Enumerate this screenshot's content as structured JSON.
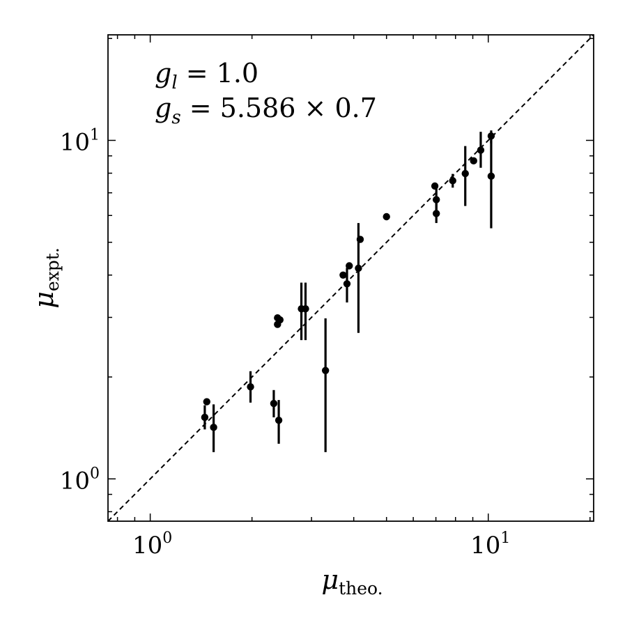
{
  "chart_data": {
    "type": "scatter",
    "xscale": "log",
    "yscale": "log",
    "xlim": [
      0.75,
      20.5
    ],
    "ylim": [
      0.75,
      20.5
    ],
    "grid": false,
    "reference_line": "y = x (dashed)",
    "xlabel": {
      "symbol": "μ",
      "subscript": "theo."
    },
    "ylabel": {
      "symbol": "μ",
      "subscript": "expt."
    },
    "x_ticks": [
      {
        "value": 1,
        "base": "10",
        "exp": "0"
      },
      {
        "value": 10,
        "base": "10",
        "exp": "1"
      }
    ],
    "y_ticks": [
      {
        "value": 1,
        "base": "10",
        "exp": "0"
      },
      {
        "value": 10,
        "base": "10",
        "exp": "1"
      }
    ],
    "annotations": [
      {
        "var": "g",
        "sub": "l",
        "rest": " = 1.0"
      },
      {
        "var": "g",
        "sub": "s",
        "rest": " = 5.586 × 0.7"
      }
    ],
    "points": [
      {
        "x": 1.45,
        "y": 1.52,
        "err_lo": 1.4,
        "err_hi": 1.65
      },
      {
        "x": 1.47,
        "y": 1.69
      },
      {
        "x": 1.54,
        "y": 1.42,
        "err_lo": 1.2,
        "err_hi": 1.66
      },
      {
        "x": 1.98,
        "y": 1.87,
        "err_lo": 1.68,
        "err_hi": 2.08
      },
      {
        "x": 2.32,
        "y": 1.67,
        "err_lo": 1.52,
        "err_hi": 1.83
      },
      {
        "x": 2.38,
        "y": 2.99
      },
      {
        "x": 2.38,
        "y": 2.86
      },
      {
        "x": 2.42,
        "y": 2.95
      },
      {
        "x": 2.4,
        "y": 1.49,
        "err_lo": 1.27,
        "err_hi": 1.71
      },
      {
        "x": 2.8,
        "y": 3.18,
        "err_lo": 2.57,
        "err_hi": 3.8
      },
      {
        "x": 2.88,
        "y": 3.18,
        "err_lo": 2.57,
        "err_hi": 3.8
      },
      {
        "x": 3.3,
        "y": 2.09,
        "err_lo": 1.2,
        "err_hi": 2.98
      },
      {
        "x": 3.72,
        "y": 4.0
      },
      {
        "x": 3.82,
        "y": 3.77,
        "err_lo": 3.32,
        "err_hi": 4.2
      },
      {
        "x": 3.88,
        "y": 4.26
      },
      {
        "x": 4.13,
        "y": 4.19,
        "err_lo": 2.7,
        "err_hi": 5.7
      },
      {
        "x": 4.18,
        "y": 5.1
      },
      {
        "x": 5.0,
        "y": 5.95
      },
      {
        "x": 6.95,
        "y": 7.33
      },
      {
        "x": 7.02,
        "y": 6.68,
        "err_lo": 6.1,
        "err_hi": 7.2
      },
      {
        "x": 7.02,
        "y": 6.08,
        "err_lo": 5.7,
        "err_hi": 6.6
      },
      {
        "x": 7.85,
        "y": 7.6,
        "err_lo": 7.25,
        "err_hi": 7.96
      },
      {
        "x": 8.55,
        "y": 7.98,
        "err_lo": 6.4,
        "err_hi": 9.62
      },
      {
        "x": 9.05,
        "y": 8.7
      },
      {
        "x": 9.5,
        "y": 9.36,
        "err_lo": 8.3,
        "err_hi": 10.6
      },
      {
        "x": 10.2,
        "y": 10.3,
        "err_lo": 9.8,
        "err_hi": 10.7
      },
      {
        "x": 10.2,
        "y": 7.84,
        "err_lo": 5.5,
        "err_hi": 10.1
      }
    ]
  }
}
